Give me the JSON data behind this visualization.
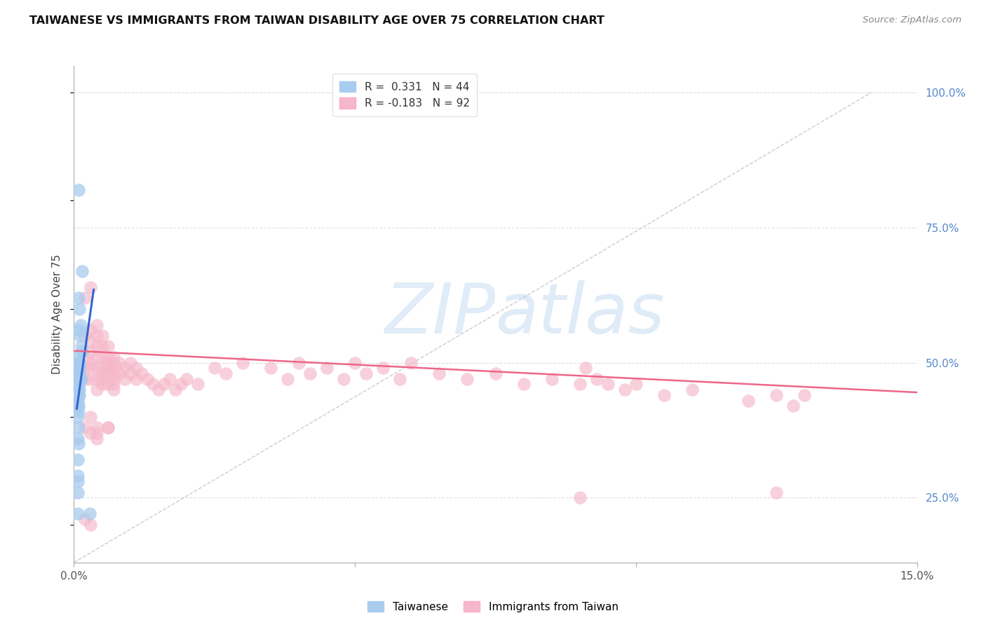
{
  "title": "TAIWANESE VS IMMIGRANTS FROM TAIWAN DISABILITY AGE OVER 75 CORRELATION CHART",
  "source": "Source: ZipAtlas.com",
  "ylabel": "Disability Age Over 75",
  "right_yticks": [
    "100.0%",
    "75.0%",
    "50.0%",
    "25.0%"
  ],
  "right_ytick_vals": [
    1.0,
    0.75,
    0.5,
    0.25
  ],
  "xlim": [
    0.0,
    0.15
  ],
  "ylim": [
    0.13,
    1.05
  ],
  "watermark_zip": "ZIP",
  "watermark_atlas": "atlas",
  "legend_blue_label": "R =  0.331   N = 44",
  "legend_pink_label": "R = -0.183   N = 92",
  "blue_color": "#A8CCEE",
  "pink_color": "#F5B8CA",
  "blue_line_color": "#3366CC",
  "pink_line_color": "#EE6688",
  "diagonal_color": "#CCCCCC",
  "blue_scatter_x": [
    0.0008,
    0.0015,
    0.0008,
    0.0009,
    0.0012,
    0.001,
    0.0011,
    0.0013,
    0.0015,
    0.0007,
    0.001,
    0.0008,
    0.0009,
    0.0008,
    0.0007,
    0.0008,
    0.0009,
    0.0008,
    0.0007,
    0.0009,
    0.0007,
    0.0011,
    0.0013,
    0.0008,
    0.0007,
    0.0008,
    0.0009,
    0.0007,
    0.0008,
    0.0009,
    0.0007,
    0.0008,
    0.0007,
    0.0008,
    0.0007,
    0.0008,
    0.0007,
    0.0008,
    0.0007,
    0.0007,
    0.0007,
    0.0007,
    0.0007,
    0.0028
  ],
  "blue_scatter_y": [
    0.82,
    0.67,
    0.62,
    0.6,
    0.57,
    0.56,
    0.55,
    0.53,
    0.52,
    0.51,
    0.5,
    0.5,
    0.5,
    0.5,
    0.5,
    0.49,
    0.49,
    0.48,
    0.48,
    0.48,
    0.47,
    0.47,
    0.47,
    0.46,
    0.46,
    0.46,
    0.45,
    0.45,
    0.44,
    0.44,
    0.43,
    0.42,
    0.42,
    0.41,
    0.4,
    0.38,
    0.36,
    0.35,
    0.32,
    0.29,
    0.28,
    0.26,
    0.22,
    0.22
  ],
  "blue_line_x": [
    0.0005,
    0.0035
  ],
  "blue_line_y": [
    0.415,
    0.635
  ],
  "pink_line_x": [
    0.0,
    0.15
  ],
  "pink_line_y": [
    0.522,
    0.445
  ],
  "pink_scatter_x": [
    0.002,
    0.002,
    0.002,
    0.002,
    0.002,
    0.003,
    0.003,
    0.003,
    0.003,
    0.003,
    0.003,
    0.003,
    0.004,
    0.004,
    0.004,
    0.004,
    0.004,
    0.004,
    0.004,
    0.005,
    0.005,
    0.005,
    0.005,
    0.005,
    0.005,
    0.005,
    0.006,
    0.006,
    0.006,
    0.006,
    0.006,
    0.006,
    0.007,
    0.007,
    0.007,
    0.007,
    0.007,
    0.007,
    0.007,
    0.008,
    0.008,
    0.009,
    0.009,
    0.01,
    0.01,
    0.011,
    0.011,
    0.012,
    0.013,
    0.014,
    0.015,
    0.016,
    0.017,
    0.018,
    0.019,
    0.02,
    0.022,
    0.025,
    0.027,
    0.03,
    0.035,
    0.038,
    0.04,
    0.042,
    0.045,
    0.048,
    0.05,
    0.052,
    0.055,
    0.058,
    0.06,
    0.065,
    0.07,
    0.075,
    0.08,
    0.085,
    0.09,
    0.091,
    0.093,
    0.095,
    0.098,
    0.1,
    0.105,
    0.11,
    0.12,
    0.125,
    0.128,
    0.13,
    0.002,
    0.003,
    0.004,
    0.006
  ],
  "pink_scatter_y": [
    0.62,
    0.55,
    0.51,
    0.49,
    0.47,
    0.64,
    0.56,
    0.54,
    0.52,
    0.5,
    0.49,
    0.47,
    0.57,
    0.55,
    0.53,
    0.51,
    0.49,
    0.47,
    0.45,
    0.55,
    0.53,
    0.51,
    0.49,
    0.48,
    0.47,
    0.46,
    0.53,
    0.51,
    0.5,
    0.49,
    0.48,
    0.46,
    0.51,
    0.5,
    0.49,
    0.48,
    0.47,
    0.46,
    0.45,
    0.5,
    0.48,
    0.49,
    0.47,
    0.5,
    0.48,
    0.49,
    0.47,
    0.48,
    0.47,
    0.46,
    0.45,
    0.46,
    0.47,
    0.45,
    0.46,
    0.47,
    0.46,
    0.49,
    0.48,
    0.5,
    0.49,
    0.47,
    0.5,
    0.48,
    0.49,
    0.47,
    0.5,
    0.48,
    0.49,
    0.47,
    0.5,
    0.48,
    0.47,
    0.48,
    0.46,
    0.47,
    0.46,
    0.49,
    0.47,
    0.46,
    0.45,
    0.46,
    0.44,
    0.45,
    0.43,
    0.44,
    0.42,
    0.44,
    0.38,
    0.37,
    0.36,
    0.38
  ],
  "pink_scatter_outlier_x": [
    0.002,
    0.003,
    0.004,
    0.006,
    0.003,
    0.004,
    0.09,
    0.125
  ],
  "pink_scatter_outlier_y": [
    0.21,
    0.2,
    0.37,
    0.38,
    0.4,
    0.38,
    0.25,
    0.26
  ]
}
